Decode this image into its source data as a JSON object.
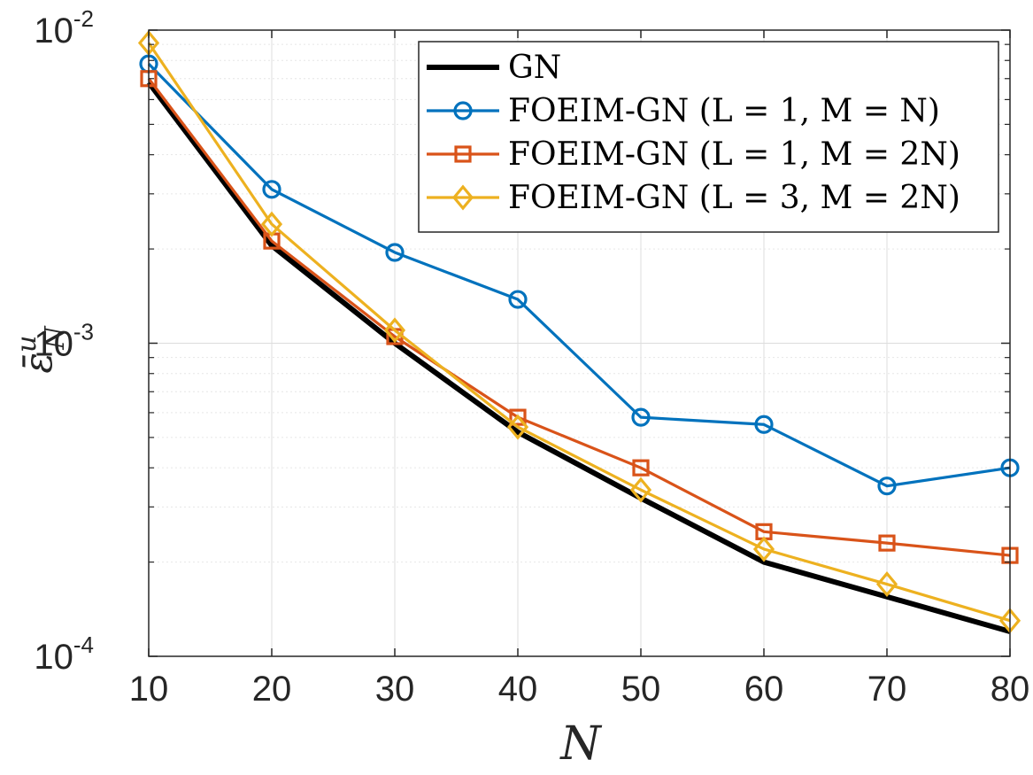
{
  "chart_data": {
    "type": "line",
    "xlabel": "N",
    "ylabel": "ε̄",
    "ylabel_superscript": "u",
    "ylabel_subscript": "N",
    "yscale": "log",
    "xlim": [
      10,
      80
    ],
    "ylim": [
      0.0001,
      0.01
    ],
    "x": [
      10,
      20,
      30,
      40,
      50,
      60,
      70,
      80
    ],
    "x_tick_labels": [
      "10",
      "20",
      "30",
      "40",
      "50",
      "60",
      "70",
      "80"
    ],
    "y_ticks": [
      {
        "value": 0.01,
        "base": "10",
        "exponent": "-2"
      },
      {
        "value": 0.001,
        "base": "10",
        "exponent": "-3"
      },
      {
        "value": 0.0001,
        "base": "10",
        "exponent": "-4"
      }
    ],
    "grid": true,
    "legend_position": "top-right",
    "series": [
      {
        "name": "GN",
        "legend_label": "GN",
        "color": "#000000",
        "marker": "none",
        "values": [
          0.0068,
          0.00205,
          0.001,
          0.00052,
          0.00032,
          0.0002,
          0.000155,
          0.00012
        ]
      },
      {
        "name": "FOEIM-GN (L=1, M=N)",
        "legend_label": "FOEIM-GN (L = 1, M = N)",
        "color": "#0072bd",
        "marker": "circle",
        "values": [
          0.0078,
          0.0031,
          0.00195,
          0.00138,
          0.00058,
          0.00055,
          0.00035,
          0.0004
        ]
      },
      {
        "name": "FOEIM-GN (L=1, M=2N)",
        "legend_label": "FOEIM-GN (L = 1, M = 2N)",
        "color": "#d95319",
        "marker": "square",
        "values": [
          0.007,
          0.00212,
          0.00105,
          0.00058,
          0.0004,
          0.00025,
          0.00023,
          0.00021
        ]
      },
      {
        "name": "FOEIM-GN (L=3, M=2N)",
        "legend_label": "FOEIM-GN (L = 3, M = 2N)",
        "color": "#edb120",
        "marker": "diamond",
        "values": [
          0.0091,
          0.0024,
          0.0011,
          0.00054,
          0.00034,
          0.00022,
          0.00017,
          0.00013
        ]
      }
    ]
  }
}
